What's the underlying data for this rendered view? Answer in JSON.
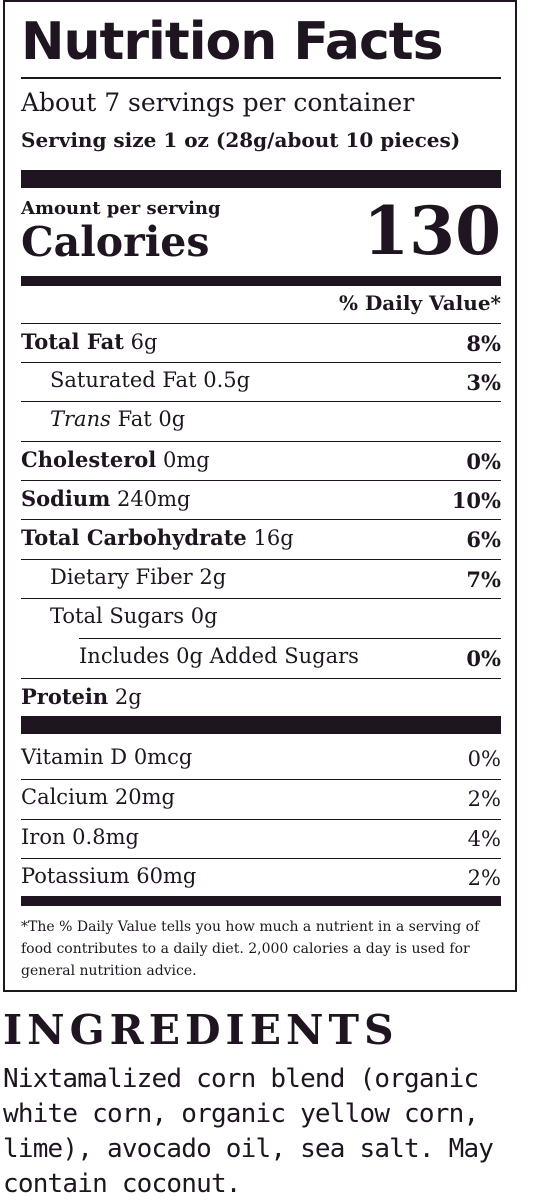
{
  "label": {
    "title": "Nutrition Facts",
    "servings_per_container": "About 7 servings per container",
    "serving_size": "Serving size 1 oz (28g/about 10 pieces)",
    "amount_per_serving": "Amount per serving",
    "calories_label": "Calories",
    "calories_value": "130",
    "daily_value_header": "% Daily Value*",
    "nutrients": [
      {
        "name": "Total Fat",
        "amount": "6g",
        "dv": "8%"
      },
      {
        "name": "Saturated Fat",
        "amount": "0.5g",
        "dv": "3%"
      },
      {
        "name_italic": "Trans",
        "name": "Fat",
        "amount": "0g",
        "dv": ""
      },
      {
        "name": "Cholesterol",
        "amount": "0mg",
        "dv": "0%"
      },
      {
        "name": "Sodium",
        "amount": "240mg",
        "dv": "10%"
      },
      {
        "name": "Total Carbohydrate",
        "amount": "16g",
        "dv": "6%"
      },
      {
        "name": "Dietary Fiber",
        "amount": "2g",
        "dv": "7%"
      },
      {
        "name": "Total Sugars",
        "amount": "0g",
        "dv": ""
      },
      {
        "text": "Includes 0g Added Sugars",
        "dv": "0%"
      },
      {
        "name": "Protein",
        "amount": "2g",
        "dv": ""
      }
    ],
    "vitamins": [
      {
        "text": "Vitamin D 0mcg",
        "dv": "0%"
      },
      {
        "text": "Calcium 20mg",
        "dv": "2%"
      },
      {
        "text": "Iron 0.8mg",
        "dv": "4%"
      },
      {
        "text": "Potassium 60mg",
        "dv": "2%"
      }
    ],
    "footnote": "*The % Daily Value tells you how much a nutrient in a serving of food contributes to a daily diet. 2,000 calories a day is used for general nutrition advice."
  },
  "ingredients": {
    "title": "INGREDIENTS",
    "text": "Nixtamalized corn blend (organic white corn, organic yellow corn, lime), avocado oil, sea salt. May contain coconut."
  },
  "colors": {
    "ink": "#1e1520",
    "background": "#ffffff"
  }
}
